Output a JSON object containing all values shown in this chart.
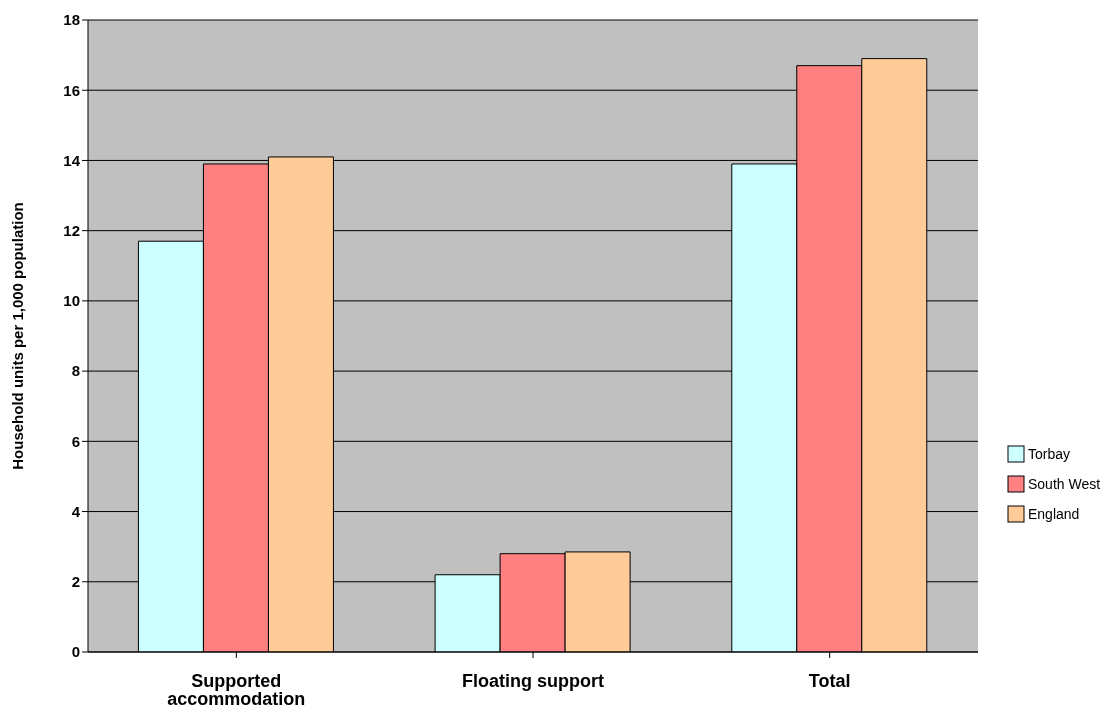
{
  "chart_data": {
    "type": "bar",
    "ylabel": "Household units per 1,000 population",
    "categories": [
      "Supported accommodation",
      "Floating support",
      "Total"
    ],
    "series": [
      {
        "name": "Torbay",
        "color": "#ccffff",
        "values": [
          11.7,
          2.2,
          13.9
        ]
      },
      {
        "name": "South West",
        "color": "#ff8080",
        "values": [
          13.9,
          2.8,
          16.7
        ]
      },
      {
        "name": "England",
        "color": "#ffcc99",
        "values": [
          14.1,
          2.85,
          16.9
        ]
      }
    ],
    "ylim": [
      0,
      18
    ],
    "yticks": [
      0,
      2,
      4,
      6,
      8,
      10,
      12,
      14,
      16,
      18
    ],
    "grid": "y",
    "legend": "right"
  }
}
